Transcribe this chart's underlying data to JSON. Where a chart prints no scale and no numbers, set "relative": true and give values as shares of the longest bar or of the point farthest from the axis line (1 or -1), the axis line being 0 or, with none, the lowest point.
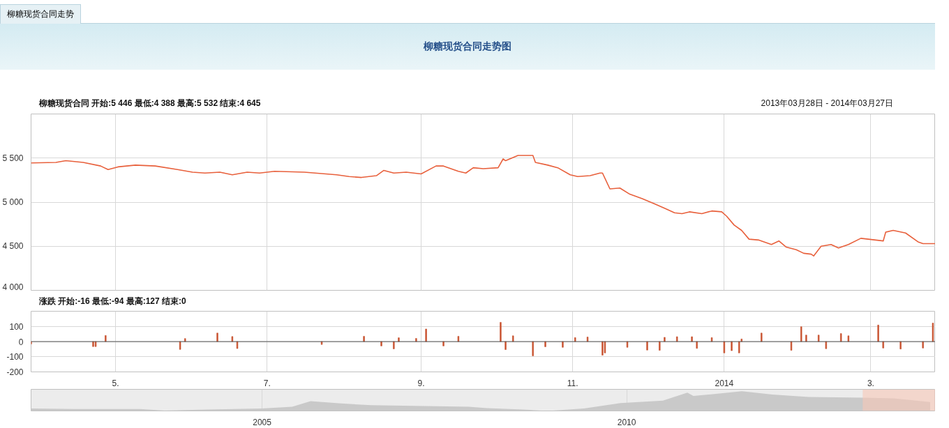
{
  "chart_data": [
    {
      "type": "line",
      "title": "柳糖现货合同走势图",
      "subtitle": "柳糖现货合同  开始:5 446  最低:4 388  最高:5 532 结束:4 645",
      "annotations": [
        "柳糖现货合同走势",
        "2013年03月28日 - 2014年03月27日"
      ],
      "x": [
        "2013-03-28",
        "2013-04-07",
        "2013-04-11",
        "2013-04-18",
        "2013-04-25",
        "2013-04-28",
        "2013-05-02",
        "2013-05-09",
        "2013-05-17",
        "2013-05-26",
        "2013-06-01",
        "2013-06-06",
        "2013-06-12",
        "2013-06-17",
        "2013-06-23",
        "2013-06-28",
        "2013-07-04",
        "2013-07-16",
        "2013-07-29",
        "2013-08-03",
        "2013-08-08",
        "2013-08-14",
        "2013-08-17",
        "2013-08-21",
        "2013-08-26",
        "2013-09-01",
        "2013-09-07",
        "2013-09-10",
        "2013-09-16",
        "2013-09-19",
        "2013-09-22",
        "2013-09-26",
        "2013-10-02",
        "2013-10-04",
        "2013-10-05",
        "2013-10-10",
        "2013-10-16",
        "2013-10-17",
        "2013-10-22",
        "2013-10-26",
        "2013-10-31",
        "2013-11-03",
        "2013-11-08",
        "2013-11-12",
        "2013-11-13",
        "2013-11-16",
        "2013-11-20",
        "2013-11-24",
        "2013-11-29",
        "2013-12-04",
        "2013-12-08",
        "2013-12-12",
        "2013-12-15",
        "2013-12-18",
        "2013-12-23",
        "2013-12-27",
        "2013-12-31",
        "2014-01-02",
        "2014-01-05",
        "2014-01-08",
        "2014-01-11",
        "2014-01-15",
        "2014-01-20",
        "2014-01-23",
        "2014-01-26",
        "2014-01-30",
        "2014-02-02",
        "2014-02-05",
        "2014-02-06",
        "2014-02-09",
        "2014-02-13",
        "2014-02-16",
        "2014-02-20",
        "2014-02-25",
        "2014-03-03",
        "2014-03-06",
        "2014-03-07",
        "2014-03-10",
        "2014-03-15",
        "2014-03-20",
        "2014-03-22",
        "2014-03-27"
      ],
      "series": [
        {
          "color": "#e8603c",
          "values": [
            5445,
            5450,
            5470,
            5450,
            5410,
            5370,
            5400,
            5420,
            5410,
            5370,
            5340,
            5330,
            5340,
            5310,
            5340,
            5330,
            5350,
            5340,
            5310,
            5290,
            5280,
            5300,
            5360,
            5330,
            5340,
            5320,
            5410,
            5410,
            5350,
            5330,
            5390,
            5380,
            5390,
            5490,
            5470,
            5530,
            5530,
            5450,
            5420,
            5390,
            5310,
            5290,
            5300,
            5330,
            5330,
            5150,
            5160,
            5090,
            5040,
            4980,
            4930,
            4880,
            4870,
            4890,
            4870,
            4900,
            4890,
            4840,
            4740,
            4680,
            4580,
            4570,
            4520,
            4560,
            4490,
            4460,
            4420,
            4410,
            4390,
            4500,
            4520,
            4480,
            4520,
            4590,
            4570,
            4560,
            4660,
            4680,
            4650,
            4550,
            4530,
            4530
          ]
        }
      ],
      "xlim": [
        "2013-03-28",
        "2014-03-27"
      ],
      "xticks": [
        {
          "value": "2013-05-01",
          "label": null
        },
        {
          "value": "2013-07-01",
          "label": null
        },
        {
          "value": "2013-09-01",
          "label": null
        },
        {
          "value": "2013-11-01",
          "label": null
        },
        {
          "value": "2014-01-01",
          "label": null
        },
        {
          "value": "2014-03-01",
          "label": null
        }
      ],
      "ylim": [
        4000,
        6000
      ],
      "yticks": [
        {
          "value": 4000,
          "label": "4 000"
        },
        {
          "value": 4500,
          "label": "4 500"
        },
        {
          "value": 5000,
          "label": "5 000"
        },
        {
          "value": 5500,
          "label": "5 500"
        }
      ],
      "grid": true,
      "tick_labels": "y"
    },
    {
      "type": "bar",
      "title": "涨跌  开始:-16 最低:-94 最高:127 结束:0",
      "x": [
        "2013-03-28",
        "2013-04-22",
        "2013-04-23",
        "2013-04-27",
        "2013-05-27",
        "2013-05-29",
        "2013-06-11",
        "2013-06-17",
        "2013-06-19",
        "2013-07-23",
        "2013-08-09",
        "2013-08-16",
        "2013-08-21",
        "2013-08-23",
        "2013-08-30",
        "2013-09-03",
        "2013-09-10",
        "2013-09-16",
        "2013-10-03",
        "2013-10-05",
        "2013-10-08",
        "2013-10-16",
        "2013-10-21",
        "2013-10-28",
        "2013-11-02",
        "2013-11-07",
        "2013-11-13",
        "2013-11-14",
        "2013-11-23",
        "2013-12-01",
        "2013-12-06",
        "2013-12-08",
        "2013-12-13",
        "2013-12-19",
        "2013-12-21",
        "2013-12-27",
        "2014-01-01",
        "2014-01-04",
        "2014-01-07",
        "2014-01-08",
        "2014-01-16",
        "2014-01-28",
        "2014-02-01",
        "2014-02-03",
        "2014-02-08",
        "2014-02-11",
        "2014-02-17",
        "2014-02-20",
        "2014-03-04",
        "2014-03-06",
        "2014-03-13",
        "2014-03-22",
        "2014-03-26",
        "2014-03-27"
      ],
      "series": [
        {
          "color": "#c8502d",
          "values": [
            -16,
            -33,
            -33,
            40,
            -52,
            20,
            56,
            33,
            -46,
            -19,
            35,
            -29,
            -48,
            25,
            21,
            83,
            -29,
            35,
            127,
            -53,
            38,
            -94,
            -34,
            -38,
            26,
            30,
            -90,
            -75,
            -38,
            -56,
            -58,
            28,
            32,
            32,
            -45,
            26,
            -75,
            -60,
            -75,
            17,
            56,
            -58,
            98,
            43,
            43,
            -47,
            53,
            38,
            109,
            -43,
            -49,
            -43,
            122,
            0
          ]
        }
      ],
      "xlim": [
        "2013-03-28",
        "2014-03-27"
      ],
      "xticks": [
        {
          "value": "2013-05-01",
          "label": "5."
        },
        {
          "value": "2013-07-01",
          "label": "7."
        },
        {
          "value": "2013-09-01",
          "label": "9."
        },
        {
          "value": "2013-11-01",
          "label": "11."
        },
        {
          "value": "2014-01-01",
          "label": "2014"
        },
        {
          "value": "2014-03-01",
          "label": "3."
        }
      ],
      "ylim": [
        -200,
        200
      ],
      "yticks": [
        -200,
        -100,
        0,
        100
      ],
      "grid": true
    },
    {
      "type": "area",
      "relative": true,
      "x": [
        "2001-11",
        "2002-06",
        "2003-05",
        "2003-09",
        "2004-04",
        "2005-01",
        "2005-06",
        "2005-09",
        "2006-02",
        "2006-07",
        "2007-02",
        "2007-11",
        "2008-02",
        "2008-08",
        "2008-12",
        "2009-06",
        "2009-12",
        "2010-07",
        "2010-11",
        "2010-12",
        "2011-08",
        "2012-01",
        "2012-07",
        "2013-04",
        "2013-09",
        "2014-03"
      ],
      "series": [
        {
          "color": "#c9c9c9",
          "values": [
            0.12,
            0.1,
            0.1,
            0.02,
            0.07,
            0.12,
            0.21,
            0.5,
            0.38,
            0.29,
            0.26,
            0.21,
            0.14,
            0.07,
            0,
            0.12,
            0.4,
            0.52,
            0.93,
            0.76,
            1,
            0.83,
            0.71,
            0.67,
            0.64,
            0.45
          ]
        }
      ],
      "xlim": [
        "2001-11-01",
        "2014-03-27"
      ],
      "xticks": [
        {
          "value": "2005-01-01",
          "label": "2005"
        },
        {
          "value": "2010-01-01",
          "label": "2010"
        }
      ],
      "bands": [
        {
          "axis": "x",
          "from": "2013-03-28",
          "to": "2014-03-27",
          "color": "#f8c8b8"
        }
      ],
      "grid": "x"
    }
  ]
}
